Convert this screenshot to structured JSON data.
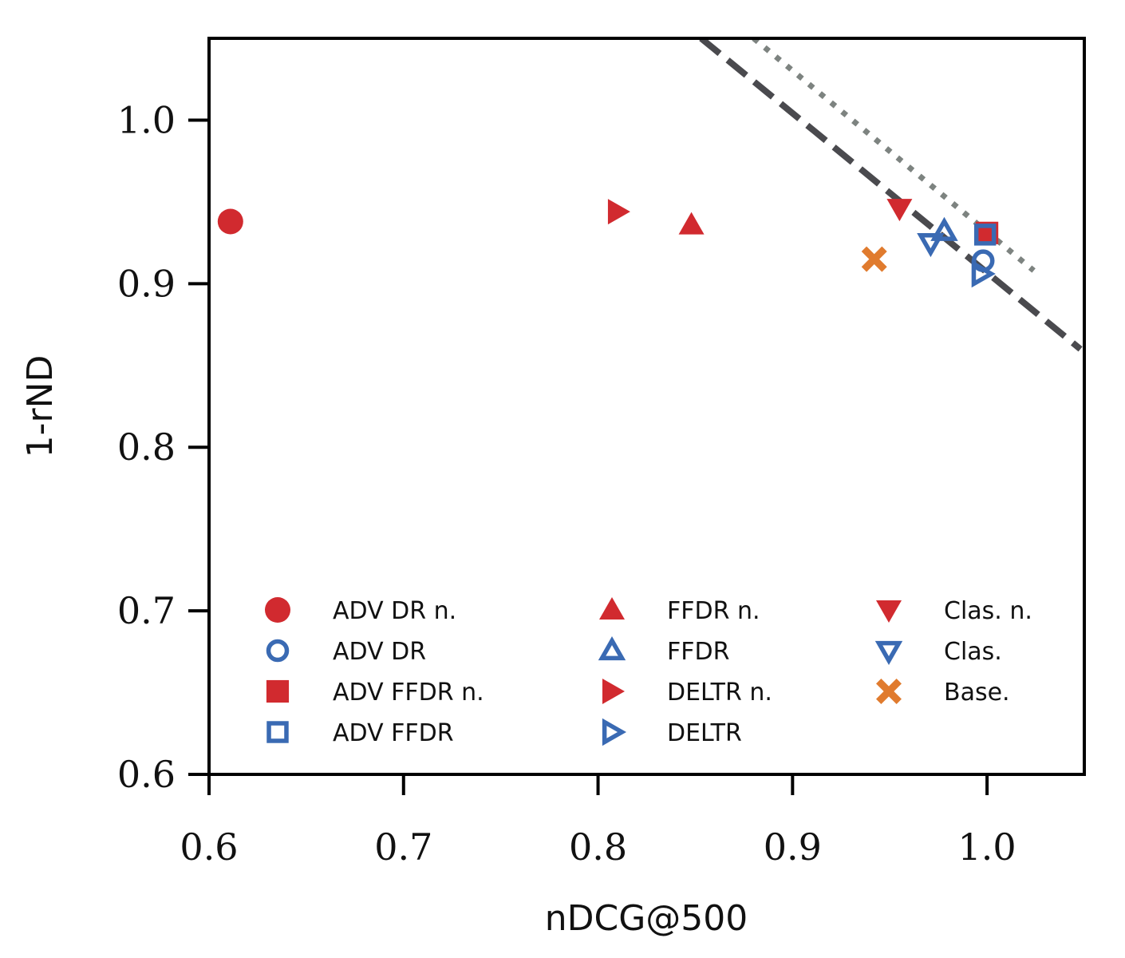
{
  "chart_data": {
    "type": "scatter",
    "xlabel": "nDCG@500",
    "ylabel": "1-rND",
    "xlim": [
      0.6,
      1.05
    ],
    "ylim": [
      0.6,
      1.05
    ],
    "xticks": [
      "0.6",
      "0.7",
      "0.8",
      "0.9",
      "1.0"
    ],
    "xtick_values": [
      0.6,
      0.7,
      0.8,
      0.9,
      1.0
    ],
    "yticks": [
      "0.6",
      "0.7",
      "0.8",
      "0.9",
      "1.0"
    ],
    "ytick_values": [
      0.6,
      0.7,
      0.8,
      0.9,
      1.0
    ],
    "grid": false,
    "legend_position": "lower center",
    "colors": {
      "red": "#d12a2f",
      "blue": "#3a6ab3",
      "orange": "#e07b2e",
      "dark": "#4a4a4e",
      "gray": "#7d8380"
    },
    "series": [
      {
        "name": "ADV DR n.",
        "marker": "circle",
        "filled": true,
        "color": "#d12a2f",
        "x": 0.611,
        "y": 0.938
      },
      {
        "name": "ADV DR",
        "marker": "circle",
        "filled": false,
        "color": "#3a6ab3",
        "x": 0.998,
        "y": 0.914
      },
      {
        "name": "ADV FFDR n.",
        "marker": "square",
        "filled": true,
        "color": "#d12a2f",
        "x": 1.0,
        "y": 0.931
      },
      {
        "name": "ADV FFDR",
        "marker": "square",
        "filled": false,
        "color": "#3a6ab3",
        "x": 0.999,
        "y": 0.93
      },
      {
        "name": "FFDR n.",
        "marker": "triangle-up",
        "filled": true,
        "color": "#d12a2f",
        "x": 0.848,
        "y": 0.936
      },
      {
        "name": "FFDR",
        "marker": "triangle-up",
        "filled": false,
        "color": "#3a6ab3",
        "x": 0.978,
        "y": 0.932
      },
      {
        "name": "DELTR n.",
        "marker": "triangle-right",
        "filled": true,
        "color": "#d12a2f",
        "x": 0.81,
        "y": 0.944
      },
      {
        "name": "DELTR",
        "marker": "triangle-right",
        "filled": false,
        "color": "#3a6ab3",
        "x": 0.997,
        "y": 0.906
      },
      {
        "name": "Clas.  n.",
        "marker": "triangle-down",
        "filled": true,
        "color": "#d12a2f",
        "x": 0.955,
        "y": 0.946
      },
      {
        "name": "Clas.",
        "marker": "triangle-down",
        "filled": false,
        "color": "#3a6ab3",
        "x": 0.971,
        "y": 0.925
      },
      {
        "name": "Base.",
        "marker": "x",
        "filled": true,
        "color": "#e07b2e",
        "x": 0.942,
        "y": 0.915
      }
    ],
    "reference_lines": [
      {
        "style": "dashed",
        "color": "#4a4a4e",
        "points": [
          [
            0.853,
            1.05
          ],
          [
            1.048,
            0.86
          ]
        ]
      },
      {
        "style": "dotted",
        "color": "#7d8380",
        "points": [
          [
            0.88,
            1.05
          ],
          [
            1.024,
            0.908
          ]
        ]
      }
    ],
    "legend_order": [
      0,
      1,
      2,
      3,
      4,
      5,
      6,
      7,
      8,
      9,
      10
    ]
  }
}
